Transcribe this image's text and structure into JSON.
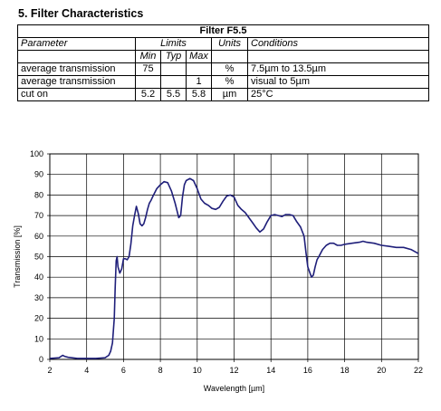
{
  "section": {
    "number": "5.",
    "title": "Filter Characteristics"
  },
  "table": {
    "filter_name": "Filter F5.5",
    "headers": {
      "parameter": "Parameter",
      "limits": "Limits",
      "units": "Units",
      "conditions": "Conditions",
      "min": "Min",
      "typ": "Typ",
      "max": "Max"
    },
    "rows": [
      {
        "parameter": "average transmission",
        "min": "75",
        "typ": "",
        "max": "",
        "units": "%",
        "conditions": "7.5µm to 13.5µm"
      },
      {
        "parameter": "average transmission",
        "min": "",
        "typ": "",
        "max": "1",
        "units": "%",
        "conditions": "visual to 5µm"
      },
      {
        "parameter": "cut on",
        "min": "5.2",
        "typ": "5.5",
        "max": "5.8",
        "units": "µm",
        "conditions": "25°C"
      }
    ]
  },
  "chart_data": {
    "type": "line",
    "title": "",
    "xlabel": "Wavelength [µm]",
    "ylabel": "Transmission [%]",
    "xlim": [
      2,
      22
    ],
    "ylim": [
      0,
      100
    ],
    "xticks": [
      "2",
      "4",
      "6",
      "8",
      "10",
      "12",
      "14",
      "16",
      "18",
      "20",
      "22"
    ],
    "yticks": [
      "0",
      "10",
      "20",
      "30",
      "40",
      "50",
      "60",
      "70",
      "80",
      "90",
      "100"
    ],
    "grid": true,
    "line_color": "#1f1f7a",
    "series": [
      {
        "name": "",
        "x": [
          2.0,
          2.5,
          2.7,
          2.8,
          3.0,
          3.2,
          3.5,
          4.0,
          4.5,
          5.0,
          5.2,
          5.3,
          5.4,
          5.5,
          5.55,
          5.6,
          5.65,
          5.7,
          5.8,
          5.9,
          6.0,
          6.1,
          6.2,
          6.3,
          6.4,
          6.5,
          6.6,
          6.7,
          6.8,
          6.9,
          7.0,
          7.1,
          7.2,
          7.3,
          7.4,
          7.5,
          7.6,
          7.8,
          8.0,
          8.2,
          8.4,
          8.6,
          8.8,
          9.0,
          9.1,
          9.2,
          9.3,
          9.4,
          9.6,
          9.8,
          10.0,
          10.2,
          10.4,
          10.6,
          10.8,
          11.0,
          11.2,
          11.4,
          11.6,
          11.8,
          12.0,
          12.2,
          12.4,
          12.6,
          12.8,
          13.0,
          13.2,
          13.4,
          13.6,
          13.8,
          14.0,
          14.2,
          14.4,
          14.6,
          14.8,
          15.0,
          15.2,
          15.4,
          15.6,
          15.8,
          15.9,
          16.0,
          16.1,
          16.2,
          16.3,
          16.4,
          16.5,
          16.6,
          16.8,
          17.0,
          17.2,
          17.4,
          17.6,
          17.8,
          18.0,
          18.4,
          18.8,
          19.0,
          19.2,
          19.6,
          20.0,
          20.4,
          20.8,
          21.2,
          21.6,
          22.0
        ],
        "y": [
          0.5,
          0.8,
          2.0,
          1.5,
          1.0,
          0.8,
          0.5,
          0.5,
          0.5,
          0.8,
          2.0,
          4.0,
          8.0,
          20.0,
          35.0,
          48.0,
          50.0,
          45.0,
          42.0,
          44.0,
          49.0,
          49.0,
          48.5,
          50.0,
          56.0,
          65.0,
          70.0,
          74.5,
          71.0,
          66.0,
          65.0,
          66.0,
          69.0,
          73.0,
          76.0,
          77.5,
          79.5,
          83.0,
          85.0,
          86.5,
          86.0,
          82.0,
          76.0,
          69.0,
          70.0,
          79.0,
          85.0,
          87.0,
          88.0,
          87.0,
          83.0,
          78.0,
          76.0,
          75.0,
          73.5,
          73.0,
          74.0,
          77.0,
          79.5,
          80.0,
          79.0,
          75.0,
          73.0,
          71.5,
          69.0,
          66.5,
          64.0,
          62.0,
          63.5,
          67.0,
          70.0,
          70.5,
          70.0,
          69.5,
          70.5,
          70.5,
          70.0,
          67.0,
          64.5,
          60.0,
          52.0,
          45.0,
          42.5,
          40.0,
          41.0,
          45.0,
          48.5,
          50.0,
          53.5,
          55.5,
          56.5,
          56.5,
          55.5,
          55.5,
          56.0,
          56.5,
          57.0,
          57.5,
          57.0,
          56.5,
          55.5,
          55.0,
          54.5,
          54.5,
          53.5,
          51.5
        ]
      }
    ]
  }
}
